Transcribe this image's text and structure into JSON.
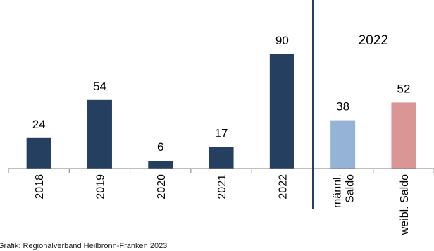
{
  "chart_data": {
    "type": "bar",
    "categories": [
      "2018",
      "2019",
      "2020",
      "2021",
      "2022",
      "männl. Saldo",
      "weibl. Saldo"
    ],
    "tick_labels": [
      [
        "2018"
      ],
      [
        "2019"
      ],
      [
        "2020"
      ],
      [
        "2021"
      ],
      [
        "2022"
      ],
      [
        "männl.",
        "Saldo"
      ],
      [
        "weibl. Saldo"
      ]
    ],
    "values": [
      24,
      54,
      6,
      17,
      90,
      38,
      52
    ],
    "bar_colors": [
      "#243f60",
      "#243f60",
      "#243f60",
      "#243f60",
      "#243f60",
      "#95b3d7",
      "#d99694"
    ],
    "group_label": "2022",
    "divider_color": "#243f60",
    "ylim": [
      0,
      100
    ],
    "grid": false,
    "legend": "none"
  },
  "source": "Grafik: Regionalverband Heilbronn-Franken 2023"
}
